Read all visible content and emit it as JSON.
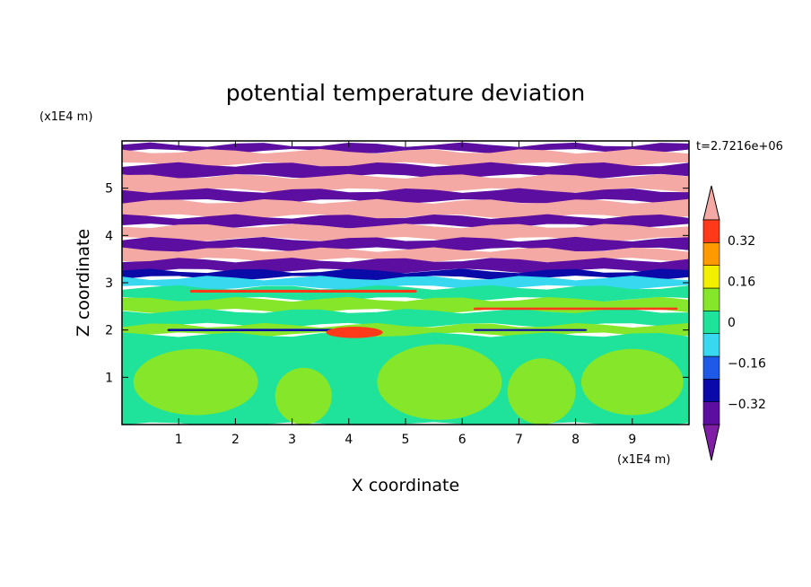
{
  "chart_data": {
    "type": "heatmap",
    "title": "potential temperature deviation",
    "xlabel": "X coordinate",
    "ylabel": "Z coordinate",
    "x_unit": "(x1E4 m)",
    "y_unit": "(x1E4 m)",
    "time_label": "t=2.7216e+06",
    "xlim": [
      0,
      10
    ],
    "ylim": [
      0,
      6
    ],
    "x_ticks": [
      1,
      2,
      3,
      4,
      5,
      6,
      7,
      8,
      9
    ],
    "y_ticks": [
      1,
      2,
      3,
      4,
      5
    ],
    "colorbar": {
      "levels": [
        -0.4,
        -0.32,
        -0.24,
        -0.16,
        -0.08,
        0,
        0.08,
        0.16,
        0.24,
        0.32,
        0.4
      ],
      "tick_labels": [
        "0.32",
        "0.16",
        "0",
        "−0.16",
        "−0.32"
      ],
      "tick_values": [
        0.32,
        0.16,
        0,
        -0.16,
        -0.32
      ],
      "colors": [
        "#7e1fa6",
        "#5b0ea0",
        "#0a0aa8",
        "#1e5ae6",
        "#38d8f0",
        "#1fe39a",
        "#86e62a",
        "#f2f000",
        "#ff9a00",
        "#ff3a1a",
        "#f4a9a4"
      ],
      "extend": "both"
    },
    "bands": [
      {
        "z0": 5.78,
        "z1": 5.92,
        "color": "#5b0ea0"
      },
      {
        "z0": 5.5,
        "z1": 5.78,
        "color": "#f4a9a4"
      },
      {
        "z0": 5.25,
        "z1": 5.5,
        "color": "#5b0ea0"
      },
      {
        "z0": 4.95,
        "z1": 5.25,
        "color": "#f4a9a4"
      },
      {
        "z0": 4.72,
        "z1": 4.95,
        "color": "#5b0ea0"
      },
      {
        "z0": 4.4,
        "z1": 4.72,
        "color": "#f4a9a4"
      },
      {
        "z0": 4.2,
        "z1": 4.4,
        "color": "#5b0ea0"
      },
      {
        "z0": 3.92,
        "z1": 4.2,
        "color": "#f4a9a4"
      },
      {
        "z0": 3.7,
        "z1": 3.92,
        "color": "#5b0ea0"
      },
      {
        "z0": 3.48,
        "z1": 3.7,
        "color": "#f4a9a4"
      },
      {
        "z0": 3.25,
        "z1": 3.48,
        "color": "#5b0ea0"
      },
      {
        "z0": 3.1,
        "z1": 3.25,
        "color": "#0a0aa8"
      },
      {
        "z0": 2.9,
        "z1": 3.1,
        "color": "#38d8f0"
      },
      {
        "z0": 2.65,
        "z1": 2.9,
        "color": "#1fe39a"
      },
      {
        "z0": 2.4,
        "z1": 2.65,
        "color": "#86e62a"
      },
      {
        "z0": 2.1,
        "z1": 2.4,
        "color": "#1fe39a"
      },
      {
        "z0": 1.9,
        "z1": 2.1,
        "color": "#86e62a"
      },
      {
        "z0": 0.0,
        "z1": 1.9,
        "color": "#1fe39a"
      }
    ],
    "features": [
      {
        "kind": "streak",
        "x0": 1.2,
        "x1": 5.2,
        "z": 2.82,
        "w": 0.06,
        "color": "#ff3a1a"
      },
      {
        "kind": "streak",
        "x0": 6.2,
        "x1": 9.8,
        "z": 2.45,
        "w": 0.05,
        "color": "#ff3a1a"
      },
      {
        "kind": "streak",
        "x0": 0.8,
        "x1": 4.0,
        "z": 2.0,
        "w": 0.05,
        "color": "#0a0aa8"
      },
      {
        "kind": "streak",
        "x0": 6.2,
        "x1": 8.2,
        "z": 2.0,
        "w": 0.04,
        "color": "#0a0aa8"
      },
      {
        "kind": "blob",
        "x": 4.1,
        "z": 1.95,
        "rx": 0.5,
        "rz": 0.12,
        "color": "#ff3a1a"
      },
      {
        "kind": "blob",
        "x": 1.3,
        "z": 0.9,
        "rx": 1.1,
        "rz": 0.7,
        "color": "#86e62a"
      },
      {
        "kind": "blob",
        "x": 3.2,
        "z": 0.6,
        "rx": 0.5,
        "rz": 0.6,
        "color": "#86e62a"
      },
      {
        "kind": "blob",
        "x": 5.6,
        "z": 0.9,
        "rx": 1.1,
        "rz": 0.8,
        "color": "#86e62a"
      },
      {
        "kind": "blob",
        "x": 7.4,
        "z": 0.7,
        "rx": 0.6,
        "rz": 0.7,
        "color": "#86e62a"
      },
      {
        "kind": "blob",
        "x": 9.0,
        "z": 0.9,
        "rx": 0.9,
        "rz": 0.7,
        "color": "#86e62a"
      }
    ]
  }
}
